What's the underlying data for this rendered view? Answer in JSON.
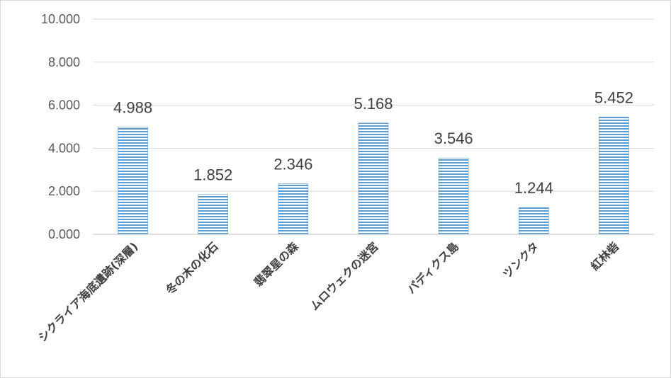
{
  "chart_data": {
    "type": "bar",
    "categories": [
      "シクライア海底遺跡(深層)",
      "冬の木の化石",
      "翡翠星の森",
      "ムロウェクの迷宮",
      "パディクス島",
      "ツンクタ",
      "紅林砦"
    ],
    "values": [
      4.988,
      1.852,
      2.346,
      5.168,
      3.546,
      1.244,
      5.452
    ],
    "data_labels": [
      "4.988",
      "1.852",
      "2.346",
      "5.168",
      "3.546",
      "1.244",
      "5.452"
    ],
    "y_ticks": [
      "0.000",
      "2.000",
      "4.000",
      "6.000",
      "8.000",
      "10.000"
    ],
    "ylim": [
      0,
      10
    ],
    "title": "",
    "xlabel": "",
    "ylabel": "",
    "grid": true,
    "legend": "none",
    "colors": {
      "bar_fill": "#ffffff",
      "bar_stripe": "#5b9bd5",
      "grid": "#d9d9d9",
      "axis": "#bfbfbf"
    }
  }
}
